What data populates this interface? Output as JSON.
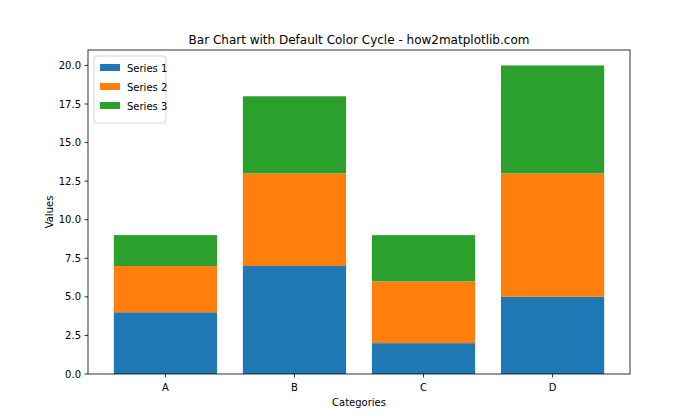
{
  "chart_data": {
    "type": "bar",
    "stacked": true,
    "title": "Bar Chart with Default Color Cycle - how2matplotlib.com",
    "x_label": "Categories",
    "y_label": "Values",
    "categories": [
      "A",
      "B",
      "C",
      "D"
    ],
    "series": [
      {
        "name": "Series 1",
        "color": "#1f77b4",
        "values": [
          4,
          7,
          2,
          5
        ]
      },
      {
        "name": "Series 2",
        "color": "#ff7f0e",
        "values": [
          3,
          6,
          4,
          8
        ]
      },
      {
        "name": "Series 3",
        "color": "#2ca02c",
        "values": [
          2,
          5,
          3,
          7
        ]
      }
    ],
    "ylim": [
      0,
      21
    ],
    "yticks": [
      {
        "value": 0,
        "label": "0.0"
      },
      2.5,
      {
        "value": 5,
        "label": "5.0"
      },
      7.5,
      {
        "value": 10,
        "label": "10.0"
      },
      12.5,
      {
        "value": 15,
        "label": "15.0"
      },
      17.5,
      {
        "value": 20,
        "label": "20.0"
      }
    ],
    "legend": "upper left",
    "grid": false
  }
}
